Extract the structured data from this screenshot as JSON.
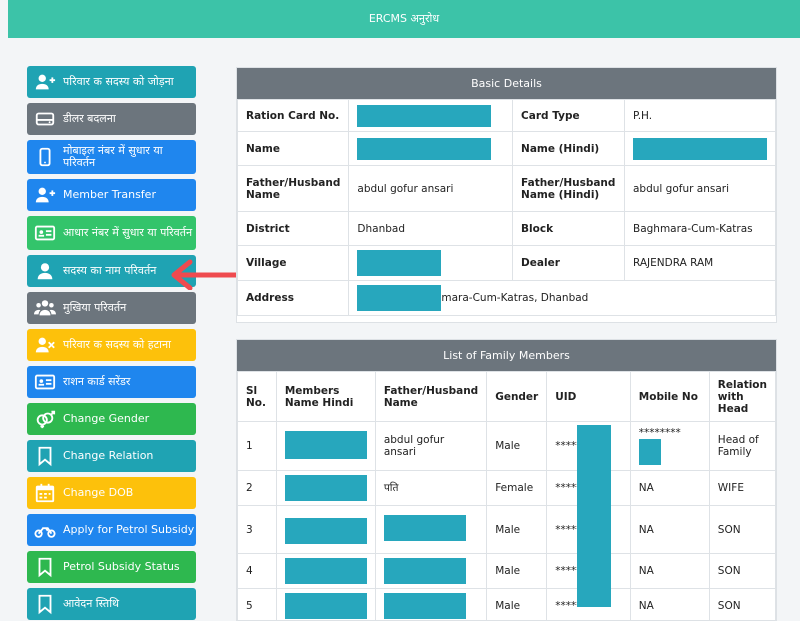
{
  "header": {
    "title": "ERCMS अनुरोध"
  },
  "sidebar": {
    "items": [
      {
        "label": "परिवार क सदस्य को जोड़ना",
        "icon": "add-user-icon",
        "color": "#1fa3b3"
      },
      {
        "label": "डीलर बदलना",
        "icon": "drive-icon",
        "color": "#6c757d"
      },
      {
        "label": "मोबाइल नंबर में सुधार या परिवर्तन",
        "icon": "mobile-icon",
        "color": "#1f86ee"
      },
      {
        "label": "Member Transfer",
        "icon": "add-user-icon",
        "color": "#1f86ee"
      },
      {
        "label": "आधार नंबर में सुधार या परिवर्तन",
        "icon": "id-card-icon",
        "color": "#33c46b"
      },
      {
        "label": "सदस्य का नाम परिवर्तन",
        "icon": "user-icon",
        "color": "#1fa3b3"
      },
      {
        "label": "मुखिया परिवर्तन",
        "icon": "users-icon",
        "color": "#6c757d"
      },
      {
        "label": "परिवार क सदस्य को हटाना",
        "icon": "remove-user-icon",
        "color": "#fdc10b"
      },
      {
        "label": "राशन कार्ड सरेंडर",
        "icon": "id-card-icon",
        "color": "#1f86ee"
      },
      {
        "label": "Change Gender",
        "icon": "gender-icon",
        "color": "#2eb84f"
      },
      {
        "label": "Change Relation",
        "icon": "bookmark-icon",
        "color": "#1fa3b3"
      },
      {
        "label": "Change DOB",
        "icon": "calendar-icon",
        "color": "#fdc10b"
      },
      {
        "label": "Apply for Petrol Subsidy",
        "icon": "motorcycle-icon",
        "color": "#1f86ee"
      },
      {
        "label": "Petrol Subsidy Status",
        "icon": "bookmark-icon",
        "color": "#2eb84f"
      },
      {
        "label": "आवेदन स्तिथि",
        "icon": "bookmark-icon",
        "color": "#1fa3b3"
      }
    ]
  },
  "basic": {
    "title": "Basic Details",
    "ration_label": "Ration Card No.",
    "card_type_label": "Card Type",
    "card_type": "P.H.",
    "name_label": "Name",
    "name_hindi_label": "Name (Hindi)",
    "father_label": "Father/Husband Name",
    "father": "abdul gofur ansari",
    "father_hindi_label": "Father/Husband Name (Hindi)",
    "father_hindi": "abdul gofur ansari",
    "district_label": "District",
    "district": "Dhanbad",
    "block_label": "Block",
    "block": "Baghmara-Cum-Katras",
    "village_label": "Village",
    "dealer_label": "Dealer",
    "dealer": "RAJENDRA RAM",
    "address_label": "Address",
    "address": "mara-Cum-Katras, Dhanbad"
  },
  "family": {
    "title": "List of Family Members",
    "columns": [
      "Sl No.",
      "Members Name Hindi",
      "Father/Husband Name",
      "Gender",
      "UID",
      "Mobile No",
      "Relation with Head"
    ],
    "rows": [
      {
        "sl": "1",
        "father": "abdul gofur ansari",
        "gender": "Male",
        "uid": "********",
        "mobile": "********",
        "relation": "Head of Family"
      },
      {
        "sl": "2",
        "father": "पति",
        "gender": "Female",
        "uid": "********",
        "mobile": "NA",
        "relation": "WIFE"
      },
      {
        "sl": "3",
        "father": "",
        "gender": "Male",
        "uid": "********",
        "mobile": "NA",
        "relation": "SON"
      },
      {
        "sl": "4",
        "father": "",
        "gender": "Male",
        "uid": "********",
        "mobile": "NA",
        "relation": "SON"
      },
      {
        "sl": "5",
        "father": "",
        "gender": "Male",
        "uid": "********",
        "mobile": "NA",
        "relation": "SON"
      }
    ]
  },
  "colors": {
    "header": "#3cc3a8",
    "mask": "#27a7bd",
    "arrow": "#ef4a4f"
  }
}
